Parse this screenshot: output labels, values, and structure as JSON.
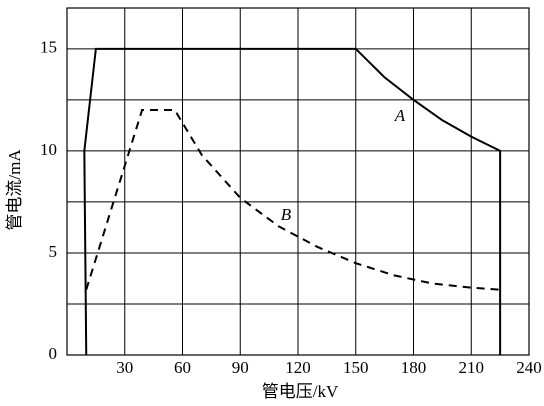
{
  "chart_data": {
    "type": "line",
    "x_label": "管电压/kV",
    "y_label": "管电流/mA",
    "xlim": [
      0,
      240
    ],
    "xticks": [
      30,
      60,
      90,
      120,
      150,
      180,
      210,
      240
    ],
    "ylim": [
      0,
      17
    ],
    "yticks": [
      0,
      5,
      10,
      15
    ],
    "minor_yticks": [
      2.5,
      7.5,
      12.5
    ],
    "grid": true,
    "series": [
      {
        "name": "A",
        "color": "#000000",
        "style": "solid",
        "x": [
          10,
          9,
          15,
          150,
          165,
          180,
          195,
          210,
          225,
          225
        ],
        "values": [
          0,
          10,
          15,
          15,
          13.6,
          12.5,
          11.5,
          10.7,
          10,
          0
        ]
      },
      {
        "name": "B",
        "color": "#000000",
        "style": "dashed",
        "x": [
          10,
          39,
          56,
          70,
          90,
          110,
          130,
          150,
          170,
          190,
          210,
          225
        ],
        "values": [
          3.2,
          12,
          12,
          9.8,
          7.7,
          6.3,
          5.3,
          4.5,
          3.9,
          3.5,
          3.3,
          3.2
        ]
      }
    ]
  }
}
